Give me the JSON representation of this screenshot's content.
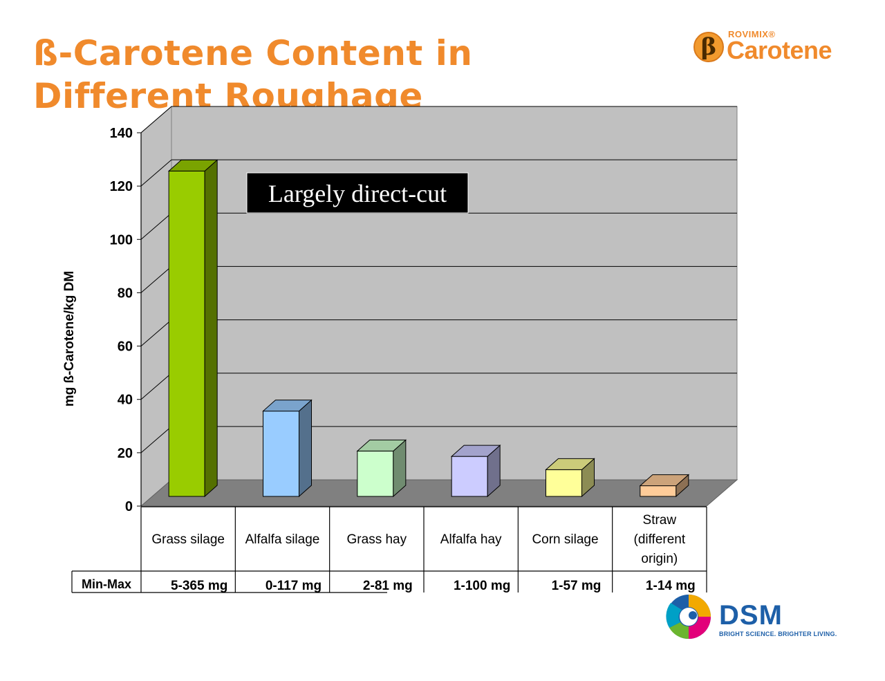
{
  "slide": {
    "title": "ß-Carotene Content in Different Roughage"
  },
  "logos": {
    "rovimix_brand": "ROVIMIX",
    "rovimix_reg": "®",
    "product": "Carotene",
    "beta_symbol": "β",
    "dsm_name": "DSM",
    "dsm_tagline": "BRIGHT SCIENCE. BRIGHTER LIVING."
  },
  "chart_data": {
    "type": "bar",
    "title": "",
    "xlabel": "",
    "ylabel": "mg ß-Carotene/kg  DM",
    "ylim": [
      0,
      140
    ],
    "yticks": [
      0,
      20,
      40,
      60,
      80,
      100,
      120,
      140
    ],
    "grid": true,
    "three_d": true,
    "categories": [
      "Grass silage",
      "Alfalfa silage",
      "Grass hay",
      "Alfalfa hay",
      "Corn silage",
      "Straw (different origin)"
    ],
    "values": [
      122,
      32,
      17,
      15,
      10,
      4
    ],
    "colors": [
      "#99cc00",
      "#99ccff",
      "#ccffcc",
      "#ccccff",
      "#ffff99",
      "#ffcc99"
    ],
    "annotation": "Largely direct-cut",
    "table": {
      "row_label": "Min-Max",
      "values": [
        "5-365 mg",
        "0-117 mg",
        "2-81 mg",
        "1-100 mg",
        "1-57 mg",
        "1-14 mg"
      ]
    }
  }
}
